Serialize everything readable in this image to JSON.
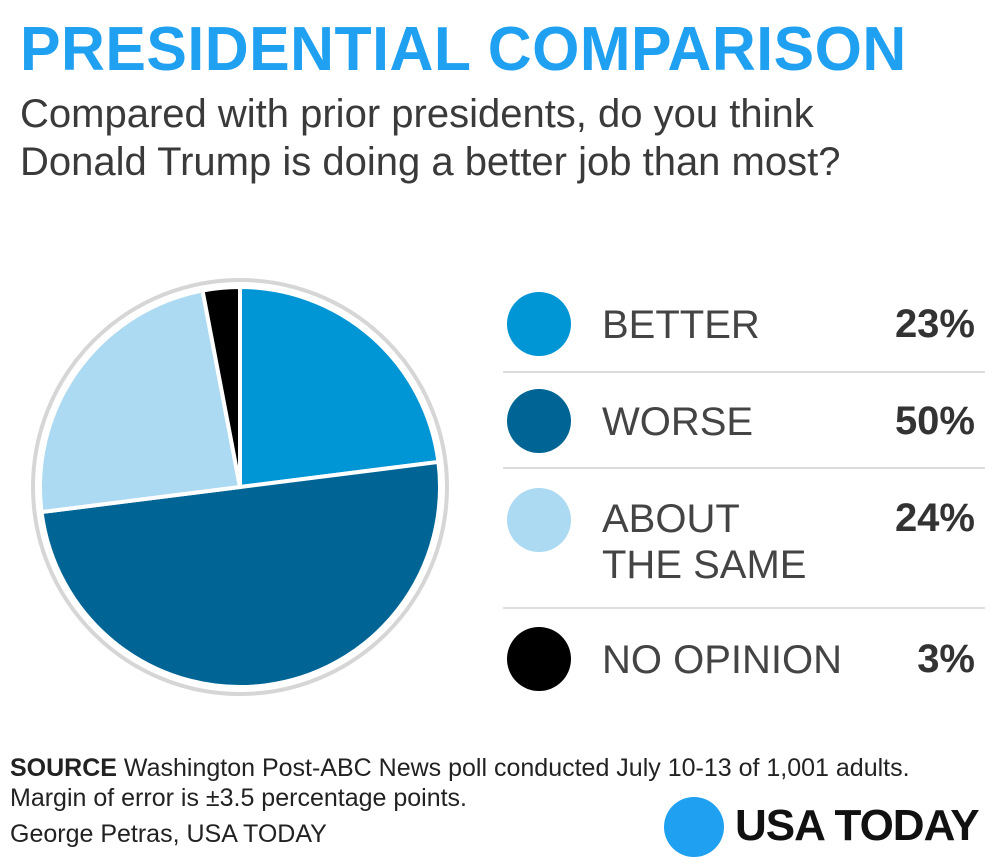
{
  "title": "PRESIDENTIAL COMPARISON",
  "subtitle": "Compared with prior presidents, do you think Donald Trump is doing a better job than most?",
  "chart_data": {
    "type": "pie",
    "start": "top, clockwise",
    "categories": [
      "BETTER",
      "WORSE",
      "ABOUT THE SAME",
      "NO OPINION"
    ],
    "values": [
      23,
      50,
      24,
      3
    ],
    "labels": [
      "23%",
      "50%",
      "24%",
      "3%"
    ],
    "colors": [
      "#0096d6",
      "#006595",
      "#acdaf2",
      "#000000"
    ],
    "legend_placement": "right"
  },
  "legend": [
    {
      "label": "BETTER",
      "pct": "23%"
    },
    {
      "label": "WORSE",
      "pct": "50%"
    },
    {
      "label_lines": [
        "ABOUT",
        "THE SAME"
      ],
      "pct": "24%"
    },
    {
      "label": "NO OPINION",
      "pct": "3%"
    }
  ],
  "source": {
    "label": "SOURCE",
    "text": "Washington Post-ABC News poll conducted July 10-13 of 1,001 adults.",
    "line2": "Margin of error is ±3.5 percentage points."
  },
  "credit": "George Petras, USA TODAY",
  "logo": {
    "text": "USA TODAY",
    "color": "#1fa0f0"
  }
}
